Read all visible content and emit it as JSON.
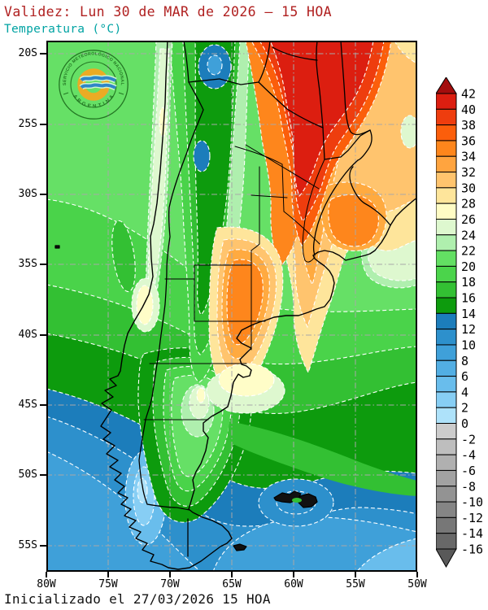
{
  "title": {
    "validity": "Validez: Lun 30 de MAR de 2026 — 15 HOA",
    "variable": "Temperatura (°C)"
  },
  "footer": {
    "initialized": "Inicializado el 27/03/2026 15 HOA"
  },
  "colors": {
    "title_text": "#B02020",
    "variable_text": "#00A3A3",
    "footer_text": "#111111",
    "map_background": "#66E066",
    "graticule": "#A8A8A8",
    "contour_line": "#FFFFFF",
    "border_line": "#000000"
  },
  "axes": {
    "lat_labels": [
      "20S",
      "25S",
      "30S",
      "35S",
      "40S",
      "45S",
      "50S",
      "55S"
    ],
    "lon_labels": [
      "80W",
      "75W",
      "70W",
      "65W",
      "60W",
      "55W",
      "50W"
    ]
  },
  "colorbar": {
    "unit": "°C",
    "tick_labels": [
      "42",
      "40",
      "38",
      "36",
      "34",
      "32",
      "30",
      "28",
      "26",
      "24",
      "22",
      "20",
      "18",
      "16",
      "14",
      "12",
      "10",
      "8",
      "6",
      "4",
      "2",
      "0",
      "-2",
      "-4",
      "-6",
      "-8",
      "-10",
      "-12",
      "-14",
      "-16"
    ],
    "cell_colors": [
      "#DC1E10",
      "#EE3D0E",
      "#FB5E0B",
      "#FE861C",
      "#FFA43F",
      "#FFC46E",
      "#FEE59B",
      "#FFFCC5",
      "#DEF8CF",
      "#AFEFAE",
      "#63DF63",
      "#4BD44B",
      "#33C033",
      "#0D9B0D",
      "#1C7DBB",
      "#2D90CC",
      "#3FA0D9",
      "#52AEE3",
      "#69BDEC",
      "#87CEF4",
      "#AEE2FA",
      "#CCCCCC",
      "#BEBEBE",
      "#B0B0B0",
      "#A2A2A2",
      "#939393",
      "#858585",
      "#777777",
      "#686868"
    ],
    "over_arrow_color": "#A40D0D",
    "under_arrow_color": "#595959"
  },
  "logo": {
    "top_text": "SERVICIO METEOROLÓGICO NACIONAL",
    "bottom_text": "A R G E N T I N A"
  }
}
